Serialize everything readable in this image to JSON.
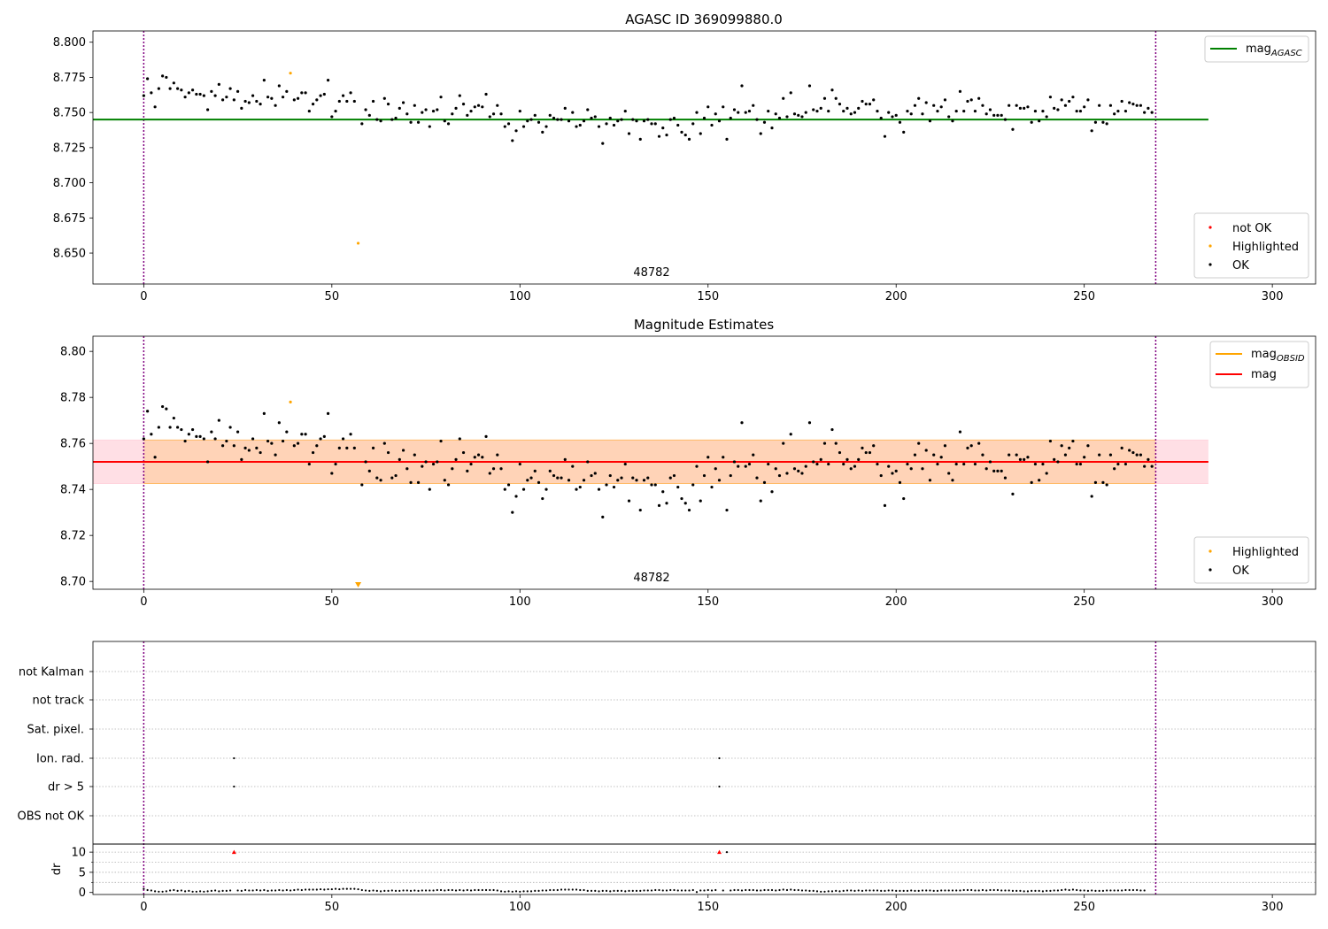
{
  "chart_data": [
    {
      "type": "scatter",
      "title": "AGASC ID 369099880.0",
      "annotation": "48782",
      "ylim": [
        8.628,
        8.808
      ],
      "xlim": [
        -13.5,
        311.5
      ],
      "yticks": [
        8.65,
        8.675,
        8.7,
        8.725,
        8.75,
        8.775,
        8.8
      ],
      "ytick_labels": [
        "8.650",
        "8.675",
        "8.700",
        "8.725",
        "8.750",
        "8.775",
        "8.800"
      ],
      "xticks": [
        0,
        50,
        100,
        150,
        200,
        250,
        300
      ],
      "xtick_labels": [
        "0",
        "50",
        "100",
        "150",
        "200",
        "250",
        "300"
      ],
      "vlines": [
        0,
        269
      ],
      "hlines": [
        {
          "name": "mag",
          "subscript": "AGASC",
          "y": 8.745,
          "x": [
            -13.5,
            283
          ],
          "color": "#008000"
        }
      ],
      "legend_lines": [
        {
          "name": "mag",
          "subscript": "AGASC",
          "color": "#008000"
        }
      ],
      "legend_markers": [
        {
          "name": "not OK",
          "color": "#ff0000"
        },
        {
          "name": "Highlighted",
          "color": "#ffa500"
        },
        {
          "name": "OK",
          "color": "#000000"
        }
      ],
      "legend_placement": [
        "top-right",
        "bottom-right"
      ],
      "ok_values": [
        8.762,
        8.774,
        8.764,
        8.754,
        8.767,
        8.776,
        8.775,
        8.767,
        8.771,
        8.767,
        8.766,
        8.761,
        8.764,
        8.766,
        8.763,
        8.763,
        8.762,
        8.752,
        8.765,
        8.762,
        8.77,
        8.759,
        8.761,
        8.767,
        8.759,
        8.765,
        8.753,
        8.758,
        8.757,
        8.762,
        8.758,
        8.756,
        8.773,
        8.761,
        8.76,
        8.755,
        8.769,
        8.761,
        8.765,
        8.778,
        8.759,
        8.76,
        8.764,
        8.764,
        8.751,
        8.756,
        8.759,
        8.762,
        8.763,
        8.773,
        8.747,
        8.751,
        8.758,
        8.762,
        8.758,
        8.764,
        8.758,
        8.657,
        8.742,
        8.752,
        8.748,
        8.758,
        8.745,
        8.744,
        8.76,
        8.756,
        8.745,
        8.746,
        8.753,
        8.757,
        8.749,
        8.743,
        8.755,
        8.743,
        8.75,
        8.752,
        8.74,
        8.751,
        8.752,
        8.761,
        8.744,
        8.742,
        8.749,
        8.753,
        8.762,
        8.756,
        8.748,
        8.751,
        8.754,
        8.755,
        8.754,
        8.763,
        8.747,
        8.749,
        8.755,
        8.749,
        8.74,
        8.742,
        8.73,
        8.737,
        8.751,
        8.74,
        8.744,
        8.745,
        8.748,
        8.743,
        8.736,
        8.74,
        8.748,
        8.746,
        8.745,
        8.745,
        8.753,
        8.744,
        8.75,
        8.74,
        8.741,
        8.744,
        8.752,
        8.746,
        8.747,
        8.74,
        8.728,
        8.742,
        8.746,
        8.741,
        8.744,
        8.745,
        8.751,
        8.735,
        8.745,
        8.744,
        8.731,
        8.744,
        8.745,
        8.742,
        8.742,
        8.733,
        8.739,
        8.734,
        8.745,
        8.746,
        8.741,
        8.736,
        8.734,
        8.731,
        8.742,
        8.75,
        8.735,
        8.746,
        8.754,
        8.741,
        8.749,
        8.744,
        8.754,
        8.731,
        8.746,
        8.752,
        8.75,
        8.769,
        8.75,
        8.751,
        8.755,
        8.745,
        8.735,
        8.743,
        8.751,
        8.739,
        8.749,
        8.746,
        8.76,
        8.747,
        8.764,
        8.749,
        8.748,
        8.747,
        8.75,
        8.769,
        8.752,
        8.751,
        8.753,
        8.76,
        8.751,
        8.766,
        8.76,
        8.756,
        8.751,
        8.753,
        8.749,
        8.75,
        8.753,
        8.758,
        8.756,
        8.756,
        8.759,
        8.751,
        8.746,
        8.733,
        8.75,
        8.747,
        8.748,
        8.743,
        8.736,
        8.751,
        8.749,
        8.755,
        8.76,
        8.749,
        8.757,
        8.744,
        8.755,
        8.751,
        8.754,
        8.759,
        8.747,
        8.744,
        8.751,
        8.765,
        8.751,
        8.758,
        8.759,
        8.751,
        8.76,
        8.755,
        8.749,
        8.752,
        8.748,
        8.748,
        8.748,
        8.745,
        8.755,
        8.738,
        8.755,
        8.753,
        8.753,
        8.754,
        8.743,
        8.751,
        8.744,
        8.751,
        8.747,
        8.761,
        8.753,
        8.752,
        8.759,
        8.755,
        8.758,
        8.761,
        8.751,
        8.751,
        8.754,
        8.759,
        8.737,
        8.743,
        8.755,
        8.743,
        8.742,
        8.755,
        8.749,
        8.751,
        8.758,
        8.751,
        8.757,
        8.756,
        8.755,
        8.755,
        8.75,
        8.753,
        8.75
      ],
      "highlighted": [
        {
          "x": 39,
          "y": 8.778
        },
        {
          "x": 57,
          "y": 8.657
        }
      ]
    },
    {
      "type": "scatter",
      "title": "Magnitude Estimates",
      "annotation": "48782",
      "ylim": [
        8.6966,
        8.8066
      ],
      "xlim": [
        -13.5,
        311.5
      ],
      "yticks": [
        8.7,
        8.72,
        8.74,
        8.76,
        8.78,
        8.8
      ],
      "ytick_labels": [
        "8.70",
        "8.72",
        "8.74",
        "8.76",
        "8.78",
        "8.80"
      ],
      "xticks": [
        0,
        50,
        100,
        150,
        200,
        250,
        300
      ],
      "xtick_labels": [
        "0",
        "50",
        "100",
        "150",
        "200",
        "250",
        "300"
      ],
      "vlines": [
        0,
        269
      ],
      "hlines": [
        {
          "name": "mag",
          "subscript": "OBSID",
          "y": 8.752,
          "x": [
            0,
            269
          ],
          "color": "#ffa500"
        },
        {
          "name": "mag",
          "subscript": "",
          "y": 8.752,
          "x": [
            -13.5,
            283
          ],
          "color": "#ff0000"
        }
      ],
      "bands": [
        {
          "y": [
            8.7425,
            8.7615
          ],
          "x": [
            -13.5,
            283
          ],
          "color": "#ffc0cb",
          "opacity": 0.5
        },
        {
          "y": [
            8.7425,
            8.7615
          ],
          "x": [
            0,
            269
          ],
          "color": "#ffa500",
          "opacity": 0.2
        }
      ],
      "legend_lines": [
        {
          "name": "mag",
          "subscript": "OBSID",
          "color": "#ffa500"
        },
        {
          "name": "mag",
          "subscript": "",
          "color": "#ff0000"
        }
      ],
      "legend_markers": [
        {
          "name": "Highlighted",
          "color": "#ffa500"
        },
        {
          "name": "OK",
          "color": "#000000"
        }
      ],
      "legend_placement": [
        "top-right",
        "bottom-right"
      ],
      "highlighted": [
        {
          "x": 39,
          "y": 8.778
        },
        {
          "x": 57,
          "y": 8.657,
          "clipped": true
        }
      ]
    },
    {
      "type": "scatter",
      "title": "",
      "xlim": [
        -13.5,
        311.5
      ],
      "xticks": [
        0,
        50,
        100,
        150,
        200,
        250,
        300
      ],
      "xtick_labels": [
        "0",
        "50",
        "100",
        "150",
        "200",
        "250",
        "300"
      ],
      "vlines": [
        0,
        269
      ],
      "flag_rows": [
        "not Kalman",
        "not track",
        "Sat. pixel.",
        "Ion. rad.",
        "dr > 5",
        "OBS not OK"
      ],
      "flags": {
        "Ion. rad.": [
          24,
          153
        ],
        "dr > 5": [
          24,
          153
        ]
      },
      "dr": {
        "ylabel": "dr",
        "ylim": [
          -0.5,
          12
        ],
        "yticks": [
          0,
          5,
          10
        ],
        "ytick_labels": [
          "0",
          "5",
          "10"
        ],
        "clipped_marker_y": 10,
        "clipped_x": [
          24,
          153
        ],
        "values": [
          0.9,
          0.6,
          0.5,
          0.3,
          0.2,
          0.2,
          0.3,
          0.5,
          0.6,
          0.4,
          0.5,
          0.3,
          0.4,
          0.2,
          0.2,
          0.3,
          0.2,
          0.3,
          0.4,
          0.5,
          0.3,
          0.4,
          0.4,
          0.5,
          10,
          0.5,
          0.4,
          0.6,
          0.5,
          0.5,
          0.6,
          0.5,
          0.6,
          0.4,
          0.5,
          0.5,
          0.6,
          0.5,
          0.6,
          0.5,
          0.6,
          0.7,
          0.6,
          0.7,
          0.7,
          0.7,
          0.7,
          0.8,
          0.7,
          0.8,
          0.8,
          0.9,
          0.8,
          0.9,
          0.9,
          0.9,
          0.9,
          0.8,
          0.6,
          0.5,
          0.4,
          0.5,
          0.4,
          0.3,
          0.4,
          0.4,
          0.5,
          0.4,
          0.4,
          0.5,
          0.5,
          0.4,
          0.5,
          0.4,
          0.5,
          0.5,
          0.5,
          0.5,
          0.6,
          0.6,
          0.5,
          0.6,
          0.6,
          0.5,
          0.6,
          0.5,
          0.6,
          0.5,
          0.6,
          0.6,
          0.6,
          0.6,
          0.6,
          0.6,
          0.5,
          0.3,
          0.2,
          0.3,
          0.2,
          0.3,
          0.2,
          0.3,
          0.3,
          0.3,
          0.4,
          0.4,
          0.5,
          0.5,
          0.6,
          0.6,
          0.6,
          0.7,
          0.7,
          0.7,
          0.7,
          0.7,
          0.6,
          0.6,
          0.4,
          0.4,
          0.4,
          0.3,
          0.4,
          0.4,
          0.3,
          0.4,
          0.4,
          0.4,
          0.3,
          0.4,
          0.4,
          0.4,
          0.4,
          0.5,
          0.5,
          0.5,
          0.6,
          0.6,
          0.5,
          0.5,
          0.6,
          0.6,
          0.5,
          0.5,
          0.5,
          0.5,
          0.6,
          0.1,
          0.5,
          0.5,
          0.6,
          0.5,
          0.6,
          0.5,
          0.5,
          10,
          0.5,
          0.6,
          0.6,
          0.5,
          0.6,
          0.6,
          0.6,
          0.5,
          0.5,
          0.6,
          0.6,
          0.6,
          0.5,
          0.6,
          0.7,
          0.6,
          0.7,
          0.6,
          0.6,
          0.5,
          0.5,
          0.4,
          0.4,
          0.3,
          0.2,
          0.2,
          0.3,
          0.3,
          0.4,
          0.3,
          0.4,
          0.5,
          0.5,
          0.4,
          0.5,
          0.4,
          0.5,
          0.5,
          0.5,
          0.5,
          0.4,
          0.4,
          0.5,
          0.5,
          0.4,
          0.4,
          0.4,
          0.4,
          0.5,
          0.4,
          0.4,
          0.5,
          0.5,
          0.5,
          0.4,
          0.4,
          0.5,
          0.5,
          0.5,
          0.5,
          0.5,
          0.5,
          0.6,
          0.6,
          0.6,
          0.5,
          0.5,
          0.6,
          0.5,
          0.6,
          0.6,
          0.6,
          0.5,
          0.5,
          0.5,
          0.4,
          0.4,
          0.4,
          0.3,
          0.3,
          0.4,
          0.4,
          0.4,
          0.3,
          0.4,
          0.4,
          0.5,
          0.5,
          0.6,
          0.7,
          0.6,
          0.7,
          0.6,
          0.5,
          0.5,
          0.4,
          0.5,
          0.4,
          0.4,
          0.4,
          0.5,
          0.5,
          0.5,
          0.5,
          0.5,
          0.6,
          0.6,
          0.6,
          0.6,
          0.5,
          0.5
        ]
      }
    }
  ]
}
